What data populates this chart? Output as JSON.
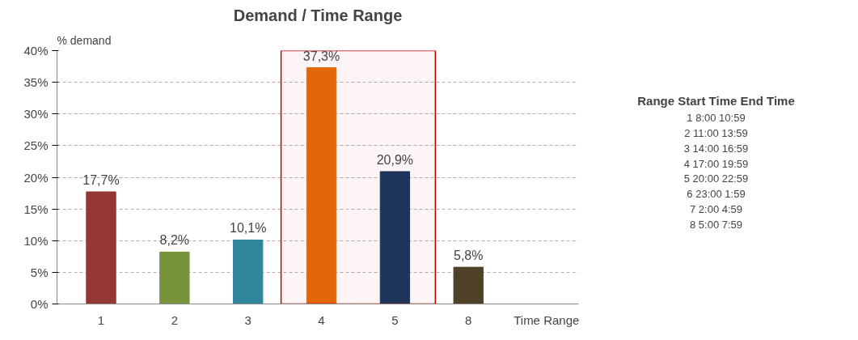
{
  "chart_data": [
    {
      "type": "bar",
      "title": "Demand / Time Range",
      "xlabel": "Time  Range",
      "ylabel": "% demand",
      "categories": [
        "1",
        "2",
        "3",
        "4",
        "5",
        "8"
      ],
      "values": [
        17.7,
        8.2,
        10.1,
        37.3,
        20.9,
        5.8
      ],
      "colors": [
        "#953735",
        "#77933c",
        "#31859c",
        "#e46c0a",
        "#17375e",
        "#4f4128"
      ],
      "value_labels": [
        "17,7%",
        "8,2%",
        "10,1%",
        "37,3%",
        "20,9%",
        "5,8%"
      ],
      "ylim": [
        0,
        40
      ],
      "yticks": [
        {
          "value": 0,
          "label": "0%"
        },
        {
          "value": 5,
          "label": "5%"
        },
        {
          "value": 10,
          "label": "10%"
        },
        {
          "value": 15,
          "label": "15%"
        },
        {
          "value": 20,
          "label": "20%"
        },
        {
          "value": 25,
          "label": "25%"
        },
        {
          "value": 30,
          "label": "30%"
        },
        {
          "value": 35,
          "label": "35%"
        },
        {
          "value": 40,
          "label": "40%"
        }
      ],
      "grid": "y",
      "bands": [
        {
          "axis": "x",
          "from": "4",
          "to": "5",
          "label": null,
          "color": "#c00000"
        }
      ]
    },
    {
      "type": "other",
      "annotations": [
        "Range Start Time End Time",
        "1 8:00 10:59",
        "2 11:00 13:59",
        "3 14:00 16:59",
        "4 17:00 19:59",
        "5 20:00 22:59",
        "6 23:00 1:59",
        "7 2:00 4:59",
        "8 5:00 7:59"
      ]
    }
  ]
}
